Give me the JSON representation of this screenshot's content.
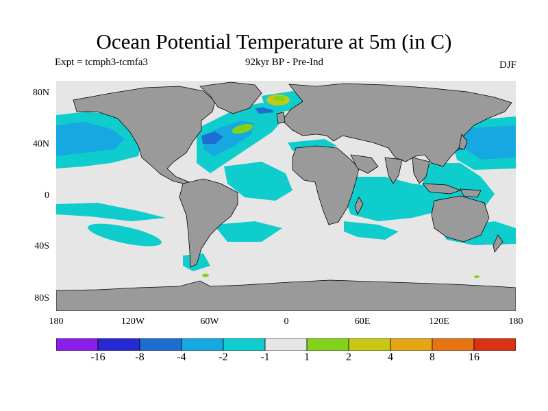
{
  "title": "Ocean Potential Temperature at 5m (in C)",
  "subtitle_left": "Expt = tcmph3-tcmfa3",
  "subtitle_center": "92kyr BP - Pre-Ind",
  "subtitle_right": "DJF",
  "lat_ticks": [
    "80N",
    "40N",
    "0",
    "40S",
    "80S"
  ],
  "lon_ticks": [
    "180",
    "120W",
    "60W",
    "0",
    "60E",
    "120E",
    "180"
  ],
  "colorbar": {
    "colors": [
      "#8a1ee6",
      "#2828d2",
      "#1e6ed2",
      "#17a7e1",
      "#10cdcd",
      "#e6e6e6",
      "#82d21a",
      "#c8c814",
      "#e6a514",
      "#e67314",
      "#dc3214"
    ],
    "labels": [
      "-16",
      "-8",
      "-4",
      "-2",
      "-1",
      "1",
      "2",
      "4",
      "8",
      "16"
    ]
  },
  "map_colors": {
    "land": "#9a9a9a",
    "ocean_neutral": "#e6e6e6",
    "coast": "#000000"
  }
}
